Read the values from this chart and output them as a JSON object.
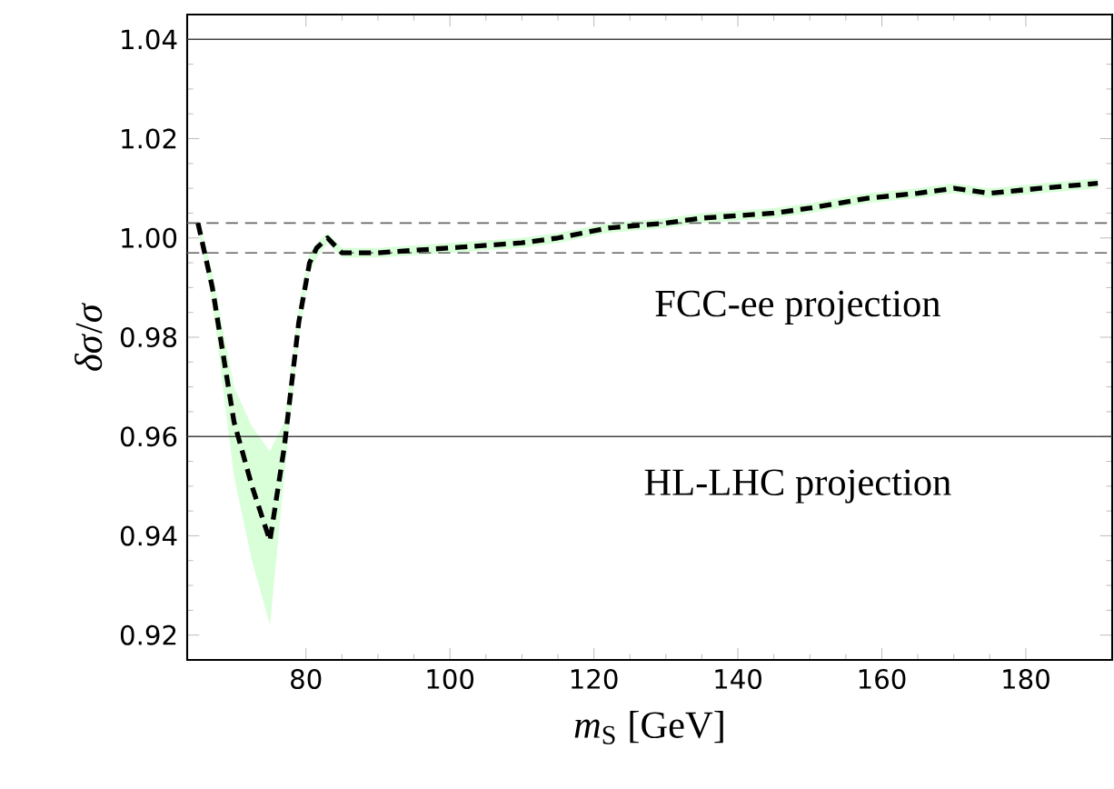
{
  "chart_data": {
    "type": "line",
    "xlabel": "*m*$_{S}$ [GeV]",
    "ylabel": "*δσ*/*σ*",
    "x": [
      65,
      67,
      70,
      72.5,
      75,
      77,
      79,
      80.5,
      81.5,
      83,
      85,
      90,
      100,
      110,
      115,
      122,
      130,
      135,
      145,
      150,
      158,
      165,
      170,
      175,
      182,
      190
    ],
    "series": [
      {
        "color": "#000000",
        "line_style": "dashed",
        "values": [
          1.003,
          0.99,
          0.963,
          0.95,
          0.939,
          0.958,
          0.983,
          0.995,
          0.998,
          1.0,
          0.997,
          0.997,
          0.998,
          0.999,
          1.0,
          1.002,
          1.003,
          1.004,
          1.005,
          1.006,
          1.008,
          1.009,
          1.01,
          1.009,
          1.01,
          1.011
        ],
        "lower": [
          1.002,
          0.987,
          0.952,
          0.935,
          0.922,
          0.952,
          0.98,
          0.993,
          0.996,
          0.999,
          0.996,
          0.996,
          0.997,
          0.998,
          0.999,
          1.001,
          1.002,
          1.003,
          1.004,
          1.005,
          1.007,
          1.008,
          1.009,
          1.008,
          1.009,
          1.01
        ],
        "upper": [
          1.004,
          0.993,
          0.97,
          0.962,
          0.957,
          0.963,
          0.986,
          0.997,
          0.999,
          1.001,
          0.998,
          0.998,
          0.999,
          1.0,
          1.001,
          1.003,
          1.004,
          1.005,
          1.006,
          1.007,
          1.009,
          1.01,
          1.011,
          1.01,
          1.011,
          1.012
        ]
      }
    ],
    "xlim": [
      63.5,
      192
    ],
    "ylim": [
      0.915,
      1.045
    ],
    "xticks": [
      80,
      100,
      120,
      140,
      160,
      180
    ],
    "yticks": [
      0.92,
      0.94,
      0.96,
      0.98,
      {
        "value": 1.0,
        "label": "1.00"
      },
      1.02,
      1.04
    ],
    "ref_lines": [
      {
        "axis": "y",
        "value": 1.04,
        "color": "#444444",
        "line_style": "solid"
      },
      {
        "axis": "y",
        "value": 0.96,
        "color": "#444444",
        "line_style": "solid"
      },
      {
        "axis": "y",
        "value": 1.003,
        "color": "#666666",
        "line_style": "dashed"
      },
      {
        "axis": "y",
        "value": 0.997,
        "color": "#666666",
        "line_style": "dashed"
      }
    ],
    "annotations": [
      "FCC-ee projection",
      "HL-LHC projection"
    ]
  }
}
